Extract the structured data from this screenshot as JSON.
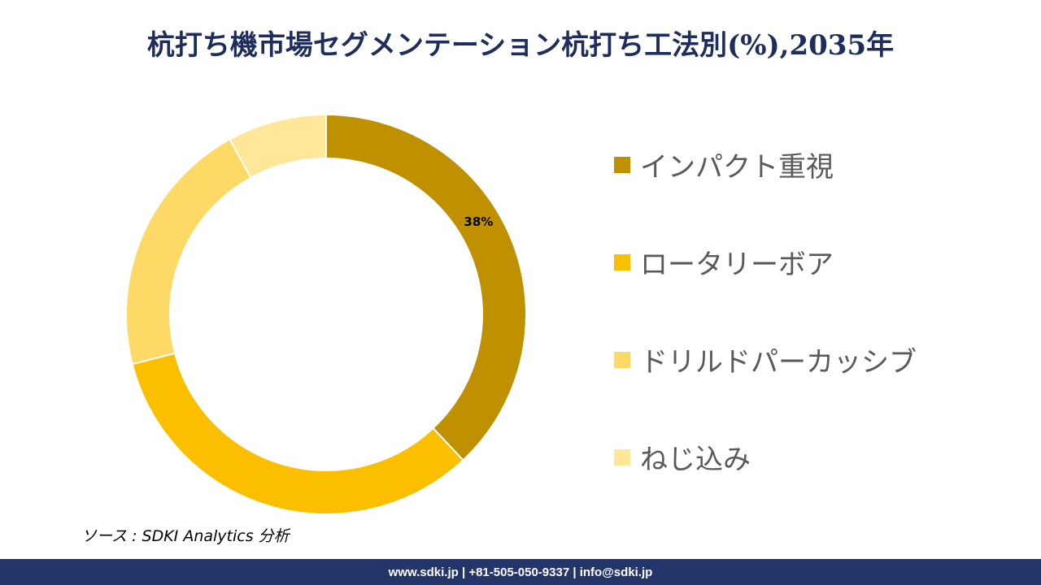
{
  "title": "杭打ち機市場セグメンテーション杭打ち工法別(%),2035年",
  "chart_data": {
    "type": "pie",
    "variant": "donut",
    "title": "杭打ち機市場セグメンテーション杭打ち工法別(%),2035年",
    "unit": "%",
    "categories": [
      "インパクト重視",
      "ロータリーボア",
      "ドリルドパーカッシブ",
      "ねじ込み"
    ],
    "values": [
      38,
      33,
      21,
      8
    ],
    "colors": [
      "#bf9000",
      "#fbbf00",
      "#ffd966",
      "#ffe699"
    ],
    "data_labels": [
      "38%",
      "",
      "",
      ""
    ],
    "legend_position": "right"
  },
  "source": "ソース : SDKI Analytics 分析",
  "footer": {
    "contact": "www.sdki.jp | +81-505-050-9337 | info@sdki.jp"
  }
}
